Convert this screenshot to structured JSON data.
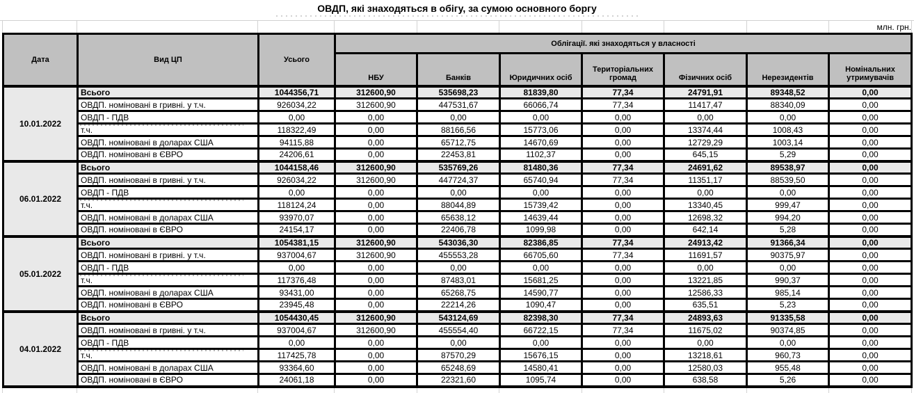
{
  "title": "ОВДП, які знаходяться в обігу, за сумою основного боргу",
  "unit": "млн. грн.",
  "columns": {
    "date": "Дата",
    "type": "Вид ЦП",
    "total": "Усього",
    "group": "Облігації. які знаходяться у власності",
    "owners": [
      "НБУ",
      "Банків",
      "Юридичних осіб",
      "Територіальних громад",
      "Фізичних осіб",
      "Нерезидентів",
      "Номінальних утримувачів"
    ]
  },
  "blocks": [
    {
      "date": "10.01.2022",
      "rows": [
        {
          "label": "Всього",
          "values": [
            "1044356,71",
            "312600,90",
            "535698,23",
            "81839,80",
            "77,34",
            "24791,91",
            "89348,52",
            "0,00"
          ]
        },
        {
          "label": "ОВДП. номіновані в гривні. у т.ч.",
          "values": [
            "926034,22",
            "312600,90",
            "447531,67",
            "66066,74",
            "77,34",
            "11417,47",
            "88340,09",
            "0,00"
          ]
        },
        {
          "label": "ОВДП - ПДВ",
          "values": [
            "0,00",
            "0,00",
            "0,00",
            "0,00",
            "0,00",
            "0,00",
            "0,00",
            "0,00"
          ]
        },
        {
          "label": "т.ч.",
          "values": [
            "118322,49",
            "0,00",
            "88166,56",
            "15773,06",
            "0,00",
            "13374,44",
            "1008,43",
            "0,00"
          ]
        },
        {
          "label": "ОВДП. номіновані в доларах США",
          "values": [
            "94115,88",
            "0,00",
            "65712,75",
            "14670,69",
            "0,00",
            "12729,29",
            "1003,14",
            "0,00"
          ]
        },
        {
          "label": "ОВДП. номіновані в ЄВРО",
          "values": [
            "24206,61",
            "0,00",
            "22453,81",
            "1102,37",
            "0,00",
            "645,15",
            "5,29",
            "0,00"
          ]
        }
      ]
    },
    {
      "date": "06.01.2022",
      "rows": [
        {
          "label": "Всього",
          "values": [
            "1044158,46",
            "312600,90",
            "535769,26",
            "81480,36",
            "77,34",
            "24691,62",
            "89538,97",
            "0,00"
          ]
        },
        {
          "label": "ОВДП. номіновані в гривні. у т.ч.",
          "values": [
            "926034,22",
            "312600,90",
            "447724,37",
            "65740,94",
            "77,34",
            "11351,17",
            "88539,50",
            "0,00"
          ]
        },
        {
          "label": "ОВДП - ПДВ",
          "values": [
            "0,00",
            "0,00",
            "0,00",
            "0,00",
            "0,00",
            "0,00",
            "0,00",
            "0,00"
          ]
        },
        {
          "label": "т.ч.",
          "values": [
            "118124,24",
            "0,00",
            "88044,89",
            "15739,42",
            "0,00",
            "13340,45",
            "999,47",
            "0,00"
          ]
        },
        {
          "label": "ОВДП. номіновані в доларах США",
          "values": [
            "93970,07",
            "0,00",
            "65638,12",
            "14639,44",
            "0,00",
            "12698,32",
            "994,20",
            "0,00"
          ]
        },
        {
          "label": "ОВДП. номіновані в ЄВРО",
          "values": [
            "24154,17",
            "0,00",
            "22406,78",
            "1099,98",
            "0,00",
            "642,14",
            "5,28",
            "0,00"
          ]
        }
      ]
    },
    {
      "date": "05.01.2022",
      "rows": [
        {
          "label": "Всього",
          "values": [
            "1054381,15",
            "312600,90",
            "543036,30",
            "82386,85",
            "77,34",
            "24913,42",
            "91366,34",
            "0,00"
          ]
        },
        {
          "label": "ОВДП. номіновані в гривні. у т.ч.",
          "values": [
            "937004,67",
            "312600,90",
            "455553,28",
            "66705,60",
            "77,34",
            "11691,57",
            "90375,97",
            "0,00"
          ]
        },
        {
          "label": "ОВДП - ПДВ",
          "values": [
            "0,00",
            "0,00",
            "0,00",
            "0,00",
            "0,00",
            "0,00",
            "0,00",
            "0,00"
          ]
        },
        {
          "label": "т.ч.",
          "values": [
            "117376,48",
            "0,00",
            "87483,01",
            "15681,25",
            "0,00",
            "13221,85",
            "990,37",
            "0,00"
          ]
        },
        {
          "label": "ОВДП. номіновані в доларах США",
          "values": [
            "93431,00",
            "0,00",
            "65268,75",
            "14590,77",
            "0,00",
            "12586,33",
            "985,14",
            "0,00"
          ]
        },
        {
          "label": "ОВДП. номіновані в ЄВРО",
          "values": [
            "23945,48",
            "0,00",
            "22214,26",
            "1090,47",
            "0,00",
            "635,51",
            "5,23",
            "0,00"
          ]
        }
      ]
    },
    {
      "date": "04.01.2022",
      "rows": [
        {
          "label": "Всього",
          "values": [
            "1054430,45",
            "312600,90",
            "543124,69",
            "82398,30",
            "77,34",
            "24893,63",
            "91335,58",
            "0,00"
          ]
        },
        {
          "label": "ОВДП. номіновані в гривні. у т.ч.",
          "values": [
            "937004,67",
            "312600,90",
            "455554,40",
            "66722,15",
            "77,34",
            "11675,02",
            "90374,85",
            "0,00"
          ]
        },
        {
          "label": "ОВДП - ПДВ",
          "values": [
            "0,00",
            "0,00",
            "0,00",
            "0,00",
            "0,00",
            "0,00",
            "0,00",
            "0,00"
          ]
        },
        {
          "label": "т.ч.",
          "values": [
            "117425,78",
            "0,00",
            "87570,29",
            "15676,15",
            "0,00",
            "13218,61",
            "960,73",
            "0,00"
          ]
        },
        {
          "label": "ОВДП. номіновані в доларах США",
          "values": [
            "93364,60",
            "0,00",
            "65248,69",
            "14580,41",
            "0,00",
            "12580,03",
            "955,48",
            "0,00"
          ]
        },
        {
          "label": "ОВДП. номіновані в ЄВРО",
          "values": [
            "24061,18",
            "0,00",
            "22321,60",
            "1095,74",
            "0,00",
            "638,58",
            "5,26",
            "0,00"
          ]
        }
      ]
    }
  ]
}
